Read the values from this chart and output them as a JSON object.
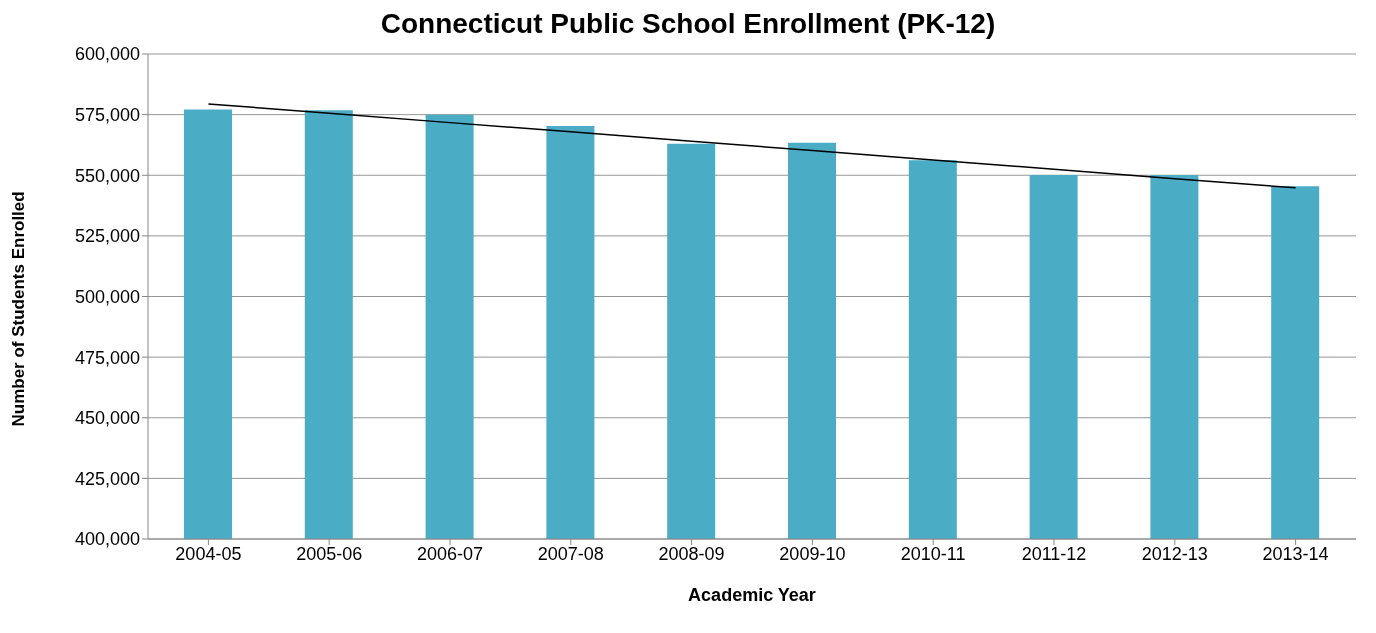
{
  "chart_data": {
    "type": "bar",
    "title": "Connecticut Public School Enrollment (PK-12)",
    "xlabel": "Academic Year",
    "ylabel": "Number of Students Enrolled",
    "categories": [
      "2004-05",
      "2005-06",
      "2006-07",
      "2007-08",
      "2008-09",
      "2009-10",
      "2010-11",
      "2011-12",
      "2012-13",
      "2013-14"
    ],
    "series": [
      {
        "color": "#4bacc6",
        "values": [
          577100,
          576800,
          574900,
          570300,
          563000,
          563400,
          556200,
          550100,
          550100,
          545500
        ]
      },
      {
        "type": "line",
        "color": "#000000",
        "values": [
          579400,
          575600,
          571700,
          567900,
          564000,
          560200,
          556300,
          552500,
          548600,
          544800
        ]
      }
    ],
    "ylim": [
      400000,
      600000
    ],
    "yticks": [
      {
        "value": 400000,
        "label": "400,000"
      },
      {
        "value": 425000,
        "label": "425,000"
      },
      {
        "value": 450000,
        "label": "450,000"
      },
      {
        "value": 475000,
        "label": "475,000"
      },
      {
        "value": 500000,
        "label": "500,000"
      },
      {
        "value": 525000,
        "label": "525,000"
      },
      {
        "value": 550000,
        "label": "550,000"
      },
      {
        "value": 575000,
        "label": "575,000"
      },
      {
        "value": 600000,
        "label": "600,000"
      }
    ],
    "grid": "y",
    "legend": false,
    "marker": "none"
  }
}
